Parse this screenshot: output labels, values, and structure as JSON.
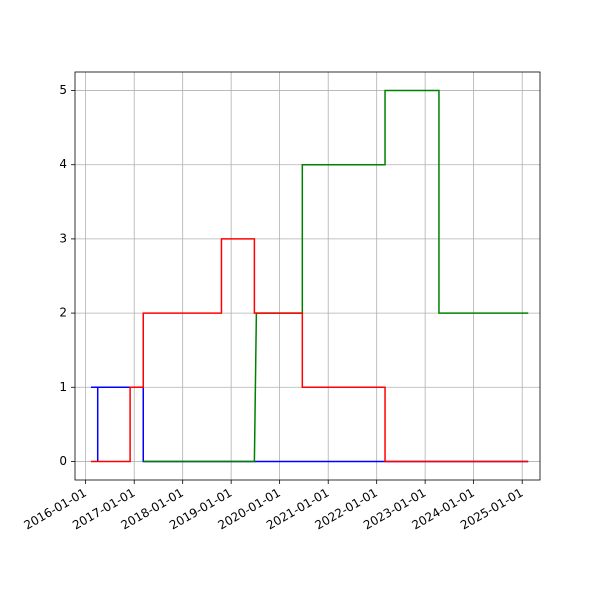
{
  "chart_data": {
    "type": "line",
    "title": "",
    "xlabel": "",
    "ylabel": "",
    "grid": true,
    "xlim": [
      "2015-10-13",
      "2025-05-15"
    ],
    "ylim": [
      -0.25,
      5.25
    ],
    "x_ticks": [
      "2016-01-01",
      "2017-01-01",
      "2018-01-01",
      "2019-01-01",
      "2020-01-01",
      "2021-01-01",
      "2022-01-01",
      "2023-01-01",
      "2024-01-01",
      "2025-01-01"
    ],
    "y_ticks": [
      0,
      1,
      2,
      3,
      4,
      5
    ],
    "y_tick_labels": [
      "0",
      "1",
      "2",
      "3",
      "4",
      "5"
    ],
    "series": [
      {
        "color": "#0000ff",
        "points": [
          [
            "2016-02-10",
            1
          ],
          [
            "2016-04-01",
            1
          ],
          [
            "2016-04-01",
            0
          ],
          [
            "2016-04-01",
            1
          ],
          [
            "2017-03-10",
            1
          ],
          [
            "2017-03-10",
            0
          ],
          [
            "2025-02-15",
            0
          ]
        ]
      },
      {
        "color": "#008000",
        "points": [
          [
            "2017-03-10",
            0
          ],
          [
            "2019-06-25",
            0
          ],
          [
            "2019-07-10",
            2
          ],
          [
            "2019-07-10",
            2
          ],
          [
            "2020-06-20",
            2
          ],
          [
            "2020-06-20",
            4
          ],
          [
            "2022-03-05",
            4
          ],
          [
            "2022-03-05",
            5
          ],
          [
            "2023-04-15",
            5
          ],
          [
            "2023-04-15",
            2
          ],
          [
            "2025-02-15",
            2
          ]
        ]
      },
      {
        "color": "#ff0000",
        "points": [
          [
            "2016-02-10",
            0
          ],
          [
            "2016-12-01",
            0
          ],
          [
            "2016-12-01",
            1
          ],
          [
            "2017-03-10",
            1
          ],
          [
            "2017-03-10",
            2
          ],
          [
            "2018-10-20",
            2
          ],
          [
            "2018-10-20",
            3
          ],
          [
            "2019-06-25",
            3
          ],
          [
            "2019-06-25",
            2
          ],
          [
            "2020-06-20",
            2
          ],
          [
            "2020-06-20",
            1
          ],
          [
            "2022-03-05",
            1
          ],
          [
            "2022-03-05",
            0
          ],
          [
            "2025-02-15",
            0
          ]
        ]
      }
    ]
  }
}
